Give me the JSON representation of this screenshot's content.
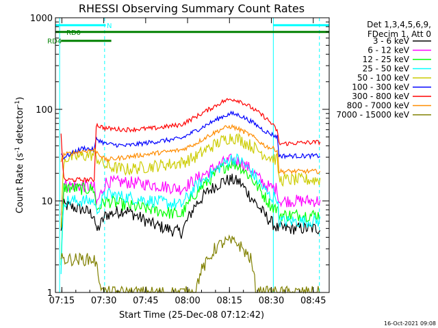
{
  "chart_data": {
    "type": "line",
    "title": "RHESSI Observing Summary Count Rates",
    "xlabel": "Start Time (25-Dec-08 07:12:42)",
    "ylabel_main": "Count Rate (s",
    "ylabel_sup1": "-1",
    "ylabel_mid": " detector",
    "ylabel_sup2": "-1",
    "ylabel_end": ")",
    "x_ticks": [
      "07:15",
      "07:30",
      "07:45",
      "08:00",
      "08:15",
      "08:30",
      "08:45"
    ],
    "x_tick_minutes": [
      2.3,
      17.3,
      32.3,
      47.3,
      62.3,
      77.3,
      92.3
    ],
    "xlim_minutes": [
      0,
      98
    ],
    "y_ticks": [
      "1",
      "10",
      "100",
      "1000"
    ],
    "y_tick_values": [
      1,
      10,
      100,
      1000
    ],
    "ylim": [
      1,
      1000
    ],
    "yscale": "log",
    "legend_header": [
      "Det 1,3,4,5,6,9,",
      "FDecim 1, Att 0"
    ],
    "series": [
      {
        "name": "3 - 6 keV",
        "color": "#000000",
        "t": [
          2,
          3,
          10,
          14,
          14.5,
          18,
          25,
          35,
          45,
          50,
          55,
          60,
          63,
          66,
          70,
          75,
          77,
          79.5,
          80,
          95
        ],
        "y": [
          4.5,
          9,
          8,
          7,
          4.5,
          7,
          8,
          5.5,
          4.5,
          9,
          13,
          16.5,
          17,
          16,
          11,
          7,
          6,
          5,
          5,
          5
        ]
      },
      {
        "name": "6 - 12 keV",
        "color": "#ff00ff",
        "t": [
          2,
          3,
          10,
          14,
          14.5,
          18,
          25,
          35,
          45,
          50,
          55,
          60,
          63,
          66,
          70,
          75,
          77,
          79.5,
          80,
          95
        ],
        "y": [
          7,
          15,
          14.5,
          14,
          9,
          16,
          16,
          15,
          13.5,
          17,
          21,
          26,
          28,
          27,
          22,
          15,
          14,
          13.5,
          10,
          10
        ]
      },
      {
        "name": "12 - 25 keV",
        "color": "#00ff00",
        "t": [
          2,
          3,
          10,
          14,
          14.5,
          18,
          25,
          35,
          45,
          50,
          55,
          60,
          63,
          66,
          70,
          75,
          77,
          79.5,
          80,
          95
        ],
        "y": [
          1.8,
          14,
          13.5,
          13.5,
          8,
          10,
          9,
          8,
          7,
          12,
          17,
          23,
          26,
          24,
          18,
          11,
          9,
          8,
          7,
          7
        ]
      },
      {
        "name": "25 - 50 keV",
        "color": "#00ffff",
        "t": [
          2,
          3,
          10,
          14,
          14.5,
          18,
          25,
          35,
          45,
          50,
          55,
          60,
          63,
          66,
          70,
          75,
          77,
          79.5,
          80,
          95
        ],
        "y": [
          1.8,
          10,
          10,
          10,
          7.5,
          12,
          11,
          10,
          9,
          14,
          19,
          25,
          29,
          28,
          21,
          13,
          11,
          11,
          6,
          6
        ]
      },
      {
        "name": "50 - 100 keV",
        "color": "#cccc00",
        "t": [
          2,
          3,
          10,
          14,
          14.5,
          18,
          25,
          35,
          45,
          50,
          55,
          60,
          63,
          66,
          70,
          75,
          77,
          79.5,
          80,
          95
        ],
        "y": [
          5.5,
          29,
          31,
          32,
          30,
          24,
          22,
          24,
          26,
          30,
          38,
          46,
          50,
          47,
          40,
          32,
          30,
          28,
          17,
          17
        ]
      },
      {
        "name": "100 - 300 keV",
        "color": "#0000ff",
        "t": [
          2,
          3,
          10,
          14,
          14.5,
          18,
          25,
          35,
          45,
          50,
          55,
          60,
          63,
          66,
          70,
          75,
          77,
          79.5,
          80,
          95
        ],
        "y": [
          33,
          30,
          38,
          36,
          48,
          42,
          40,
          44,
          48,
          58,
          70,
          84,
          90,
          86,
          74,
          58,
          54,
          50,
          31,
          31
        ]
      },
      {
        "name": "300 - 800 keV",
        "color": "#ff0000",
        "t": [
          2,
          3,
          10,
          14,
          14.5,
          18,
          25,
          35,
          45,
          50,
          55,
          60,
          63,
          66,
          70,
          75,
          77,
          79.5,
          80,
          95
        ],
        "y": [
          52,
          17,
          17,
          17,
          68,
          62,
          60,
          62,
          68,
          82,
          100,
          122,
          130,
          124,
          105,
          82,
          72,
          58,
          42,
          44
        ]
      },
      {
        "name": "800 - 7000 keV",
        "color": "#ff8c00",
        "t": [
          2,
          3,
          10,
          14,
          14.5,
          18,
          25,
          35,
          45,
          50,
          55,
          60,
          63,
          66,
          70,
          75,
          77,
          79.5,
          80,
          95
        ],
        "y": [
          27,
          32,
          35,
          36,
          35,
          28,
          30,
          33,
          36,
          42,
          52,
          62,
          65,
          60,
          52,
          40,
          38,
          36,
          21,
          21
        ]
      },
      {
        "name": "7000 - 15000 keV",
        "color": "#808000",
        "t": [
          2,
          3,
          10,
          14,
          17,
          50,
          52,
          55,
          57,
          60,
          62,
          65,
          67,
          70,
          72,
          95
        ],
        "y": [
          2.3,
          2.3,
          2.3,
          2.3,
          1,
          1,
          1.7,
          2.3,
          3,
          3.5,
          3.6,
          3.5,
          3,
          2.3,
          1,
          1
        ]
      }
    ],
    "attenuator_bars": [
      {
        "label": "N",
        "color": "#00ffff",
        "start": 0,
        "end": 18,
        "level": 830
      },
      {
        "label": "",
        "color": "#00ffff",
        "start": 78,
        "end": 98,
        "level": 830
      },
      {
        "label": "RD0",
        "color": "#008000",
        "start": 0,
        "end": 98,
        "level": 700
      },
      {
        "label": "RD4",
        "color": "#008000",
        "start": 2,
        "end": 20,
        "level": 560
      }
    ],
    "dashed_lines_minutes": [
      17.6,
      94.5
    ],
    "solid_lines_minutes": [
      1.5,
      78
    ]
  },
  "footer": {
    "timestamp": "16-Oct-2021 09:08"
  }
}
